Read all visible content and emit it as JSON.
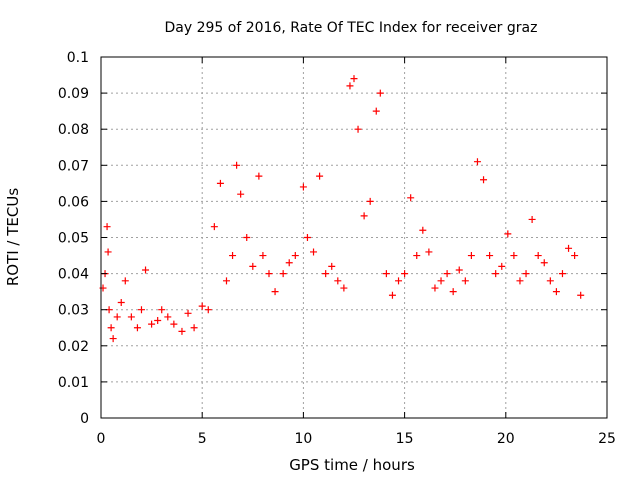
{
  "chart_data": {
    "type": "scatter",
    "title": "Day 295 of 2016, Rate Of TEC Index for receiver graz",
    "xlabel": "GPS time / hours",
    "ylabel": "ROTI / TECUs",
    "xlim": [
      0,
      25
    ],
    "ylim": [
      0,
      0.1
    ],
    "xticks": [
      0,
      5,
      10,
      15,
      20,
      25
    ],
    "xtick_labels": [
      "0",
      "5",
      "10",
      "15",
      "20",
      "25"
    ],
    "yticks": [
      0,
      0.01,
      0.02,
      0.03,
      0.04,
      0.05,
      0.06,
      0.07,
      0.08,
      0.09,
      0.1
    ],
    "ytick_labels": [
      "0",
      "0.01",
      "0.02",
      "0.03",
      "0.04",
      "0.05",
      "0.06",
      "0.07",
      "0.08",
      "0.09",
      "0.1"
    ],
    "grid": true,
    "marker": "+",
    "color": "#ff0000",
    "series": [
      {
        "name": "ROTI",
        "x": [
          0.1,
          0.2,
          0.3,
          0.35,
          0.4,
          0.5,
          0.6,
          0.8,
          1.0,
          1.2,
          1.5,
          1.8,
          2.0,
          2.2,
          2.5,
          2.8,
          3.0,
          3.3,
          3.6,
          4.0,
          4.3,
          4.6,
          5.0,
          5.3,
          5.6,
          5.9,
          6.2,
          6.5,
          6.7,
          6.9,
          7.2,
          7.5,
          7.8,
          8.0,
          8.3,
          8.6,
          9.0,
          9.3,
          9.6,
          10.0,
          10.2,
          10.5,
          10.8,
          11.1,
          11.4,
          11.7,
          12.0,
          12.3,
          12.5,
          12.7,
          13.0,
          13.3,
          13.6,
          13.8,
          14.1,
          14.4,
          14.7,
          15.0,
          15.3,
          15.6,
          15.9,
          16.2,
          16.5,
          16.8,
          17.1,
          17.4,
          17.7,
          18.0,
          18.3,
          18.6,
          18.9,
          19.2,
          19.5,
          19.8,
          20.1,
          20.4,
          20.7,
          21.0,
          21.3,
          21.6,
          21.9,
          22.2,
          22.5,
          22.8,
          23.1,
          23.4,
          23.7
        ],
        "y": [
          0.036,
          0.04,
          0.053,
          0.046,
          0.03,
          0.025,
          0.022,
          0.028,
          0.032,
          0.038,
          0.028,
          0.025,
          0.03,
          0.041,
          0.026,
          0.027,
          0.03,
          0.028,
          0.026,
          0.024,
          0.029,
          0.025,
          0.031,
          0.03,
          0.053,
          0.065,
          0.038,
          0.045,
          0.07,
          0.062,
          0.05,
          0.042,
          0.067,
          0.045,
          0.04,
          0.035,
          0.04,
          0.043,
          0.045,
          0.064,
          0.05,
          0.046,
          0.067,
          0.04,
          0.042,
          0.038,
          0.036,
          0.092,
          0.094,
          0.08,
          0.056,
          0.06,
          0.085,
          0.09,
          0.04,
          0.034,
          0.038,
          0.04,
          0.061,
          0.045,
          0.052,
          0.046,
          0.036,
          0.038,
          0.04,
          0.035,
          0.041,
          0.038,
          0.045,
          0.071,
          0.066,
          0.045,
          0.04,
          0.042,
          0.051,
          0.045,
          0.038,
          0.04,
          0.055,
          0.045,
          0.043,
          0.038,
          0.035,
          0.04,
          0.047,
          0.045,
          0.034
        ]
      }
    ]
  }
}
